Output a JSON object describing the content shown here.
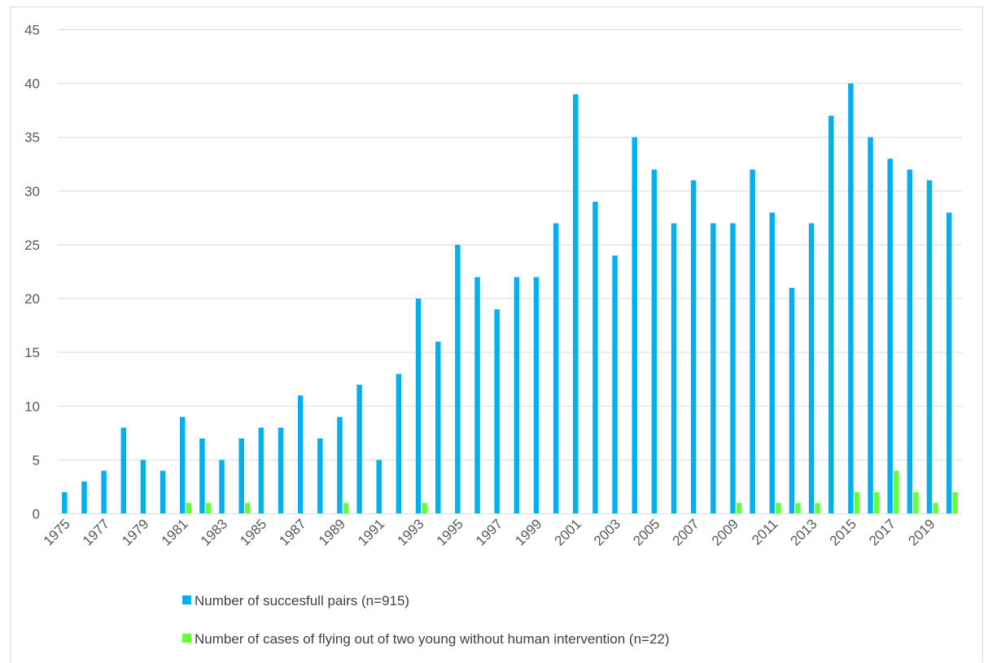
{
  "chart_data": {
    "type": "bar",
    "title": "",
    "xlabel": "",
    "ylabel": "",
    "ylim": [
      0,
      45
    ],
    "y_ticks": [
      "0",
      "5",
      "10",
      "15",
      "20",
      "25",
      "30",
      "35",
      "40",
      "45"
    ],
    "grid": true,
    "legend_position": "bottom",
    "categories": [
      "1975",
      "1976",
      "1977",
      "1978",
      "1979",
      "1980",
      "1981",
      "1982",
      "1983",
      "1984",
      "1985",
      "1986",
      "1987",
      "1988",
      "1989",
      "1990",
      "1991",
      "1992",
      "1993",
      "1994",
      "1995",
      "1996",
      "1997",
      "1998",
      "1999",
      "2000",
      "2001",
      "2002",
      "2003",
      "2004",
      "2005",
      "2006",
      "2007",
      "2008",
      "2009",
      "2010",
      "2011",
      "2012",
      "2013",
      "2014",
      "2015",
      "2016",
      "2017",
      "2018",
      "2019",
      "2020"
    ],
    "x_tick_labels": [
      "1975",
      "1977",
      "1979",
      "1981",
      "1983",
      "1985",
      "1987",
      "1989",
      "1991",
      "1993",
      "1995",
      "1997",
      "1999",
      "2001",
      "2003",
      "2005",
      "2007",
      "2009",
      "2011",
      "2013",
      "2015",
      "2017",
      "2019"
    ],
    "series": [
      {
        "name": "Number of succesfull pairs (n=915)",
        "color": "#00B0F0",
        "values": [
          2,
          3,
          4,
          8,
          5,
          4,
          9,
          7,
          5,
          7,
          8,
          8,
          11,
          7,
          9,
          12,
          5,
          13,
          20,
          16,
          25,
          22,
          19,
          22,
          22,
          27,
          39,
          29,
          24,
          35,
          32,
          27,
          31,
          27,
          27,
          32,
          28,
          21,
          27,
          37,
          40,
          35,
          33,
          32,
          31,
          28
        ]
      },
      {
        "name": "Number of cases of flying out of two young without human intervention (n=22)",
        "color": "#66FF33",
        "values": [
          0,
          0,
          0,
          0,
          0,
          0,
          1,
          1,
          0,
          1,
          0,
          0,
          0,
          0,
          1,
          0,
          0,
          0,
          1,
          0,
          0,
          0,
          0,
          0,
          0,
          0,
          0,
          0,
          0,
          0,
          0,
          0,
          0,
          0,
          1,
          0,
          1,
          1,
          1,
          0,
          2,
          2,
          4,
          2,
          1,
          2
        ]
      }
    ]
  }
}
